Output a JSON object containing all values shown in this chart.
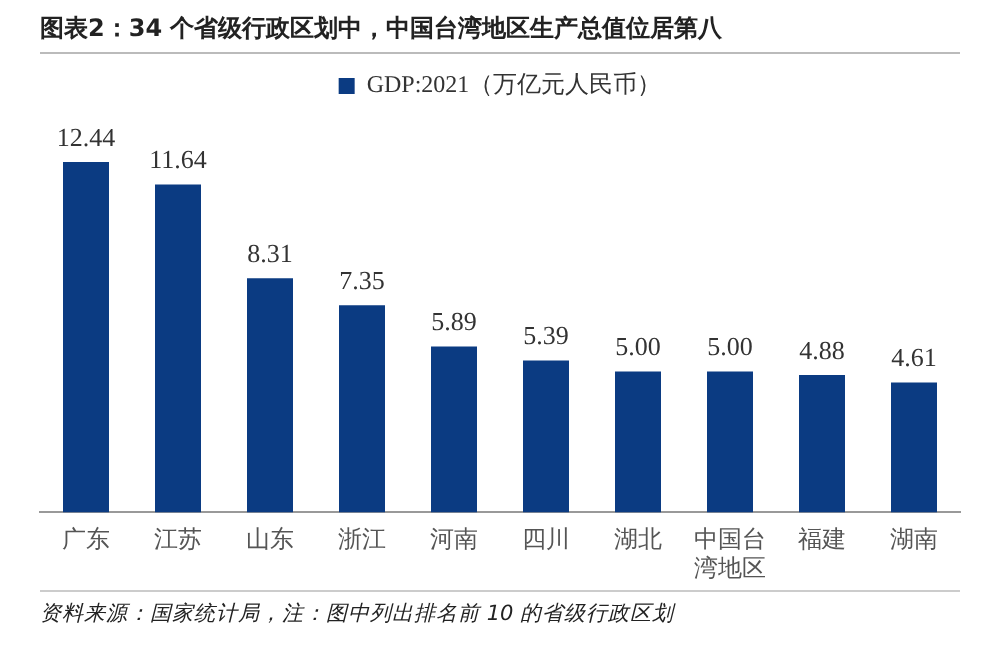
{
  "chart_data": {
    "type": "bar",
    "title": "图表2：34 个省级行政区划中，中国台湾地区生产总值位居第八",
    "categories": [
      "广东",
      "江苏",
      "山东",
      "浙江",
      "河南",
      "四川",
      "湖北",
      "中国台湾地区",
      "福建",
      "湖南"
    ],
    "series": [
      {
        "name": "GDP:2021（万亿元人民币）",
        "color": "#0b3b82",
        "values": [
          12.44,
          11.64,
          8.31,
          7.35,
          5.89,
          5.39,
          5.0,
          5.0,
          4.88,
          4.61
        ],
        "value_labels": [
          "12.44",
          "11.64",
          "8.31",
          "7.35",
          "5.89",
          "5.39",
          "5.00",
          "5.00",
          "4.88",
          "4.61"
        ]
      }
    ],
    "grid": false,
    "legend": "top",
    "tick_labels": "x",
    "annotations": [
      "资料来源：国家统计局，注：图中列出排名前 10 的省级行政区划"
    ]
  }
}
